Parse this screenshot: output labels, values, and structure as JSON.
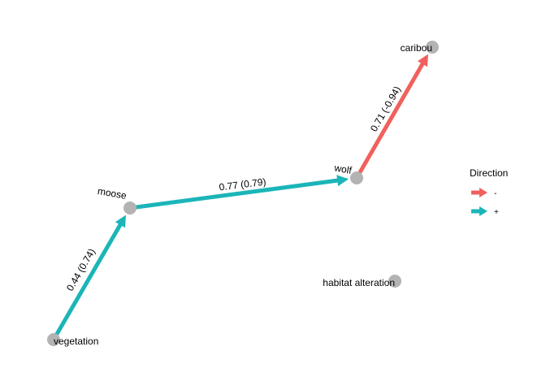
{
  "nodes": [
    {
      "id": "vegetation",
      "label": "vegetation"
    },
    {
      "id": "moose",
      "label": "moose"
    },
    {
      "id": "wolf",
      "label": "wolf"
    },
    {
      "id": "caribou",
      "label": "caribou"
    },
    {
      "id": "habitat",
      "label": "habitat alteration"
    }
  ],
  "edges": [
    {
      "from": "vegetation",
      "to": "moose",
      "label": "0.44 (0.74)",
      "direction": "+"
    },
    {
      "from": "moose",
      "to": "wolf",
      "label": "0.77 (0.79)",
      "direction": "+"
    },
    {
      "from": "wolf",
      "to": "caribou",
      "label": "0.71 (-0.94)",
      "direction": "-"
    }
  ],
  "legend": {
    "title": "Direction",
    "items": [
      {
        "label": "-",
        "color": "#F0605D"
      },
      {
        "label": "+",
        "color": "#1BB5B8"
      }
    ]
  },
  "colors": {
    "negative": "#F0605D",
    "positive": "#1BB5B8",
    "node": "#B3B3B3"
  }
}
